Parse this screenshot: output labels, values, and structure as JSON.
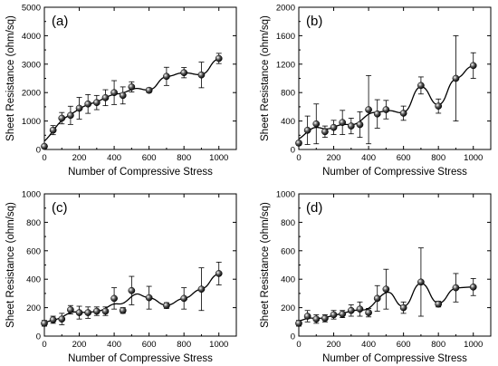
{
  "chart_data": [
    {
      "type": "scatter",
      "panel_label": "(a)",
      "xlabel": "Number of Compressive Stress",
      "ylabel": "Sheet Resistance (ohm/sq)",
      "xlim": [
        0,
        1100
      ],
      "ylim": [
        0,
        5000
      ],
      "xticks": [
        0,
        200,
        400,
        600,
        800,
        1000
      ],
      "yticks": [
        0,
        1000,
        2000,
        3000,
        4000,
        5000
      ],
      "x": [
        0,
        50,
        100,
        150,
        200,
        250,
        300,
        350,
        400,
        450,
        500,
        600,
        700,
        800,
        900,
        1000
      ],
      "y": [
        110,
        680,
        1100,
        1200,
        1450,
        1600,
        1650,
        1820,
        2000,
        1900,
        2200,
        2080,
        2570,
        2700,
        2620,
        3200
      ],
      "yerr": [
        60,
        160,
        200,
        320,
        380,
        330,
        250,
        280,
        420,
        300,
        180,
        80,
        320,
        180,
        450,
        180
      ],
      "fit_line": true,
      "grid": false
    },
    {
      "type": "scatter",
      "panel_label": "(b)",
      "xlabel": "Number of Compressive Stress",
      "ylabel": "Sheet Resistance (ohm/sq)",
      "xlim": [
        0,
        1100
      ],
      "ylim": [
        0,
        2000
      ],
      "xticks": [
        0,
        200,
        400,
        600,
        800,
        1000
      ],
      "yticks": [
        0,
        400,
        800,
        1200,
        1600,
        2000
      ],
      "x": [
        0,
        50,
        100,
        150,
        200,
        250,
        300,
        350,
        400,
        450,
        500,
        600,
        700,
        800,
        900,
        1000
      ],
      "y": [
        90,
        270,
        360,
        250,
        310,
        380,
        330,
        350,
        560,
        500,
        560,
        510,
        900,
        610,
        1000,
        1180
      ],
      "yerr": [
        30,
        200,
        280,
        80,
        100,
        170,
        110,
        180,
        480,
        200,
        130,
        100,
        120,
        100,
        600,
        180
      ],
      "fit_line": true,
      "grid": false
    },
    {
      "type": "scatter",
      "panel_label": "(c)",
      "xlabel": "Number of Compressive Stress",
      "ylabel": "Sheet Resistance (ohm/sq)",
      "xlim": [
        0,
        1100
      ],
      "ylim": [
        0,
        1000
      ],
      "xticks": [
        0,
        200,
        400,
        600,
        800,
        1000
      ],
      "yticks": [
        0,
        200,
        400,
        600,
        800,
        1000
      ],
      "x": [
        0,
        50,
        100,
        150,
        200,
        250,
        300,
        350,
        400,
        450,
        500,
        600,
        700,
        800,
        900,
        1000
      ],
      "y": [
        90,
        115,
        120,
        185,
        165,
        165,
        175,
        175,
        265,
        180,
        320,
        270,
        215,
        265,
        330,
        440
      ],
      "yerr": [
        20,
        25,
        40,
        30,
        45,
        40,
        30,
        30,
        75,
        20,
        100,
        80,
        20,
        75,
        150,
        80
      ],
      "fit_line": true,
      "grid": false
    },
    {
      "type": "scatter",
      "panel_label": "(d)",
      "xlabel": "Number of Compressive Stress",
      "ylabel": "Sheet Resistance (ohm/sq)",
      "xlim": [
        0,
        1100
      ],
      "ylim": [
        0,
        1000
      ],
      "xticks": [
        0,
        200,
        400,
        600,
        800,
        1000
      ],
      "yticks": [
        0,
        200,
        400,
        600,
        800,
        1000
      ],
      "x": [
        0,
        50,
        100,
        150,
        200,
        250,
        300,
        350,
        400,
        450,
        500,
        600,
        700,
        800,
        900,
        1000
      ],
      "y": [
        90,
        140,
        120,
        125,
        150,
        155,
        180,
        190,
        165,
        265,
        330,
        200,
        380,
        225,
        340,
        345
      ],
      "yerr": [
        20,
        40,
        30,
        25,
        30,
        25,
        40,
        50,
        30,
        90,
        140,
        40,
        240,
        20,
        100,
        60
      ],
      "fit_line": true,
      "grid": false
    }
  ]
}
